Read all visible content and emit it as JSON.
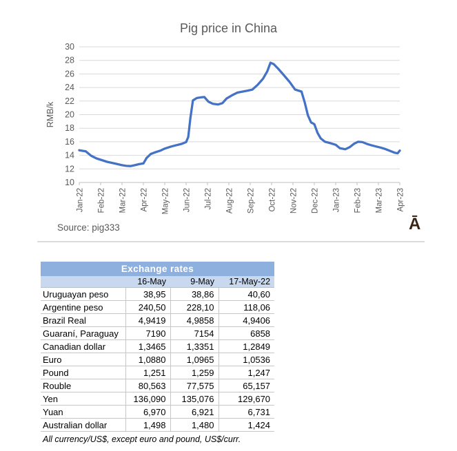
{
  "chart_data": {
    "type": "line",
    "title": "Pig price in China",
    "ylabel": "RMB/k",
    "xlabel": "",
    "ylim": [
      10,
      30
    ],
    "ytick_step": 2,
    "grid": "horizontal",
    "legend": "none",
    "line_color": "#4472C4",
    "x_tick_labels": [
      "Jan-22",
      "Feb-22",
      "Mar-22",
      "Apr-22",
      "May-22",
      "Jun-22",
      "Jul-22",
      "Aug-22",
      "Sep-22",
      "Oct-22",
      "Nov-22",
      "Dec-22",
      "Jan-23",
      "Feb-23",
      "Mar-23",
      "Apr-23"
    ],
    "x_unit": "month-index (0 = Jan-22)",
    "y_unit": "RMB per kg",
    "points": [
      [
        0,
        14.75
      ],
      [
        0.3,
        14.6
      ],
      [
        0.55,
        13.95
      ],
      [
        0.8,
        13.55
      ],
      [
        1,
        13.35
      ],
      [
        1.3,
        13.05
      ],
      [
        1.65,
        12.8
      ],
      [
        2,
        12.55
      ],
      [
        2.2,
        12.45
      ],
      [
        2.4,
        12.42
      ],
      [
        2.6,
        12.55
      ],
      [
        2.8,
        12.7
      ],
      [
        3,
        12.8
      ],
      [
        3.15,
        13.6
      ],
      [
        3.35,
        14.2
      ],
      [
        3.6,
        14.5
      ],
      [
        3.8,
        14.7
      ],
      [
        4,
        15.0
      ],
      [
        4.3,
        15.3
      ],
      [
        4.55,
        15.5
      ],
      [
        4.8,
        15.7
      ],
      [
        5,
        15.95
      ],
      [
        5.1,
        16.7
      ],
      [
        5.2,
        19.5
      ],
      [
        5.32,
        22.1
      ],
      [
        5.5,
        22.45
      ],
      [
        5.7,
        22.55
      ],
      [
        5.85,
        22.6
      ],
      [
        6.05,
        21.9
      ],
      [
        6.25,
        21.6
      ],
      [
        6.5,
        21.5
      ],
      [
        6.7,
        21.7
      ],
      [
        6.9,
        22.4
      ],
      [
        7.15,
        22.85
      ],
      [
        7.4,
        23.25
      ],
      [
        7.65,
        23.4
      ],
      [
        7.9,
        23.55
      ],
      [
        8.1,
        23.7
      ],
      [
        8.35,
        24.4
      ],
      [
        8.6,
        25.3
      ],
      [
        8.8,
        26.4
      ],
      [
        8.95,
        27.65
      ],
      [
        9.1,
        27.45
      ],
      [
        9.3,
        26.8
      ],
      [
        9.55,
        25.9
      ],
      [
        9.85,
        24.8
      ],
      [
        10.1,
        23.7
      ],
      [
        10.4,
        23.4
      ],
      [
        10.55,
        21.8
      ],
      [
        10.7,
        19.9
      ],
      [
        10.85,
        18.85
      ],
      [
        11,
        18.6
      ],
      [
        11.15,
        17.3
      ],
      [
        11.3,
        16.5
      ],
      [
        11.5,
        16.0
      ],
      [
        11.75,
        15.8
      ],
      [
        12,
        15.55
      ],
      [
        12.2,
        15.05
      ],
      [
        12.45,
        14.9
      ],
      [
        12.65,
        15.2
      ],
      [
        12.85,
        15.7
      ],
      [
        13.05,
        16.0
      ],
      [
        13.25,
        15.95
      ],
      [
        13.45,
        15.7
      ],
      [
        13.65,
        15.5
      ],
      [
        13.9,
        15.3
      ],
      [
        14.1,
        15.15
      ],
      [
        14.3,
        14.95
      ],
      [
        14.55,
        14.65
      ],
      [
        14.75,
        14.4
      ],
      [
        14.9,
        14.3
      ],
      [
        15,
        14.7
      ]
    ]
  },
  "chart": {
    "source": "Source: pig333",
    "watermark": "Ā"
  },
  "table": {
    "title": "Exchange rates",
    "columns": [
      "16-May",
      "9-May",
      "17-May-22"
    ],
    "rows": [
      {
        "label": "Uruguayan peso",
        "values": [
          "38,95",
          "38,86",
          "40,60"
        ]
      },
      {
        "label": "Argentine peso",
        "values": [
          "240,50",
          "228,10",
          "118,06"
        ]
      },
      {
        "label": "Brazil Real",
        "values": [
          "4,9419",
          "4,9858",
          "4,9406"
        ]
      },
      {
        "label": "Guaraní, Paraguay",
        "values": [
          "7190",
          "7154",
          "6858"
        ]
      },
      {
        "label": "Canadian dollar",
        "values": [
          "1,3465",
          "1,3351",
          "1,2849"
        ]
      },
      {
        "label": "Euro",
        "values": [
          "1,0880",
          "1,0965",
          "1,0536"
        ]
      },
      {
        "label": "Pound",
        "values": [
          "1,251",
          "1,259",
          "1,247"
        ]
      },
      {
        "label": "Rouble",
        "values": [
          "80,563",
          "77,575",
          "65,157"
        ]
      },
      {
        "label": "Yen",
        "values": [
          "136,090",
          "135,076",
          "129,670"
        ]
      },
      {
        "label": "Yuan",
        "values": [
          "6,970",
          "6,921",
          "6,731"
        ]
      },
      {
        "label": "Australian dollar",
        "values": [
          "1,498",
          "1,480",
          "1,424"
        ]
      }
    ],
    "footnote": "All currency/US$, except euro and pound, US$/curr."
  },
  "colors": {
    "line": "#4472C4",
    "gridline": "#D9D9D9",
    "axis_line": "#BFBFBF",
    "chart_text": "#595959",
    "table_header_bg": "#8EB0DF",
    "table_header_text": "#FFFFFF",
    "table_subheader_bg": "#C8D9EF",
    "watermark": "#3A2414"
  }
}
